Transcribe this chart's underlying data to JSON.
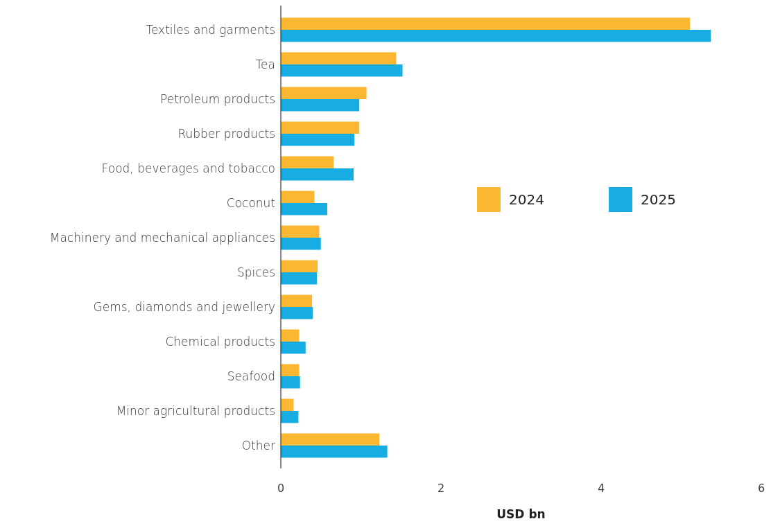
{
  "chart_data": {
    "type": "bar",
    "orientation": "horizontal",
    "xlabel": "USD bn",
    "categories": [
      "Textiles and garments",
      "Tea",
      "Petroleum products",
      "Rubber products",
      "Food, beverages and tobacco",
      "Coconut",
      "Machinery and mechanical appliances",
      "Spices",
      "Gems, diamonds and jewellery",
      "Chemical products",
      "Seafood",
      "Minor agricultural products",
      "Other"
    ],
    "series": [
      {
        "name": "2024",
        "color": "#fbb731",
        "values": [
          5.11,
          1.44,
          1.07,
          0.98,
          0.66,
          0.42,
          0.48,
          0.46,
          0.39,
          0.23,
          0.23,
          0.16,
          1.23
        ]
      },
      {
        "name": "2025",
        "color": "#17ace2",
        "values": [
          5.37,
          1.52,
          0.98,
          0.92,
          0.91,
          0.58,
          0.5,
          0.45,
          0.4,
          0.31,
          0.24,
          0.22,
          1.33
        ]
      }
    ],
    "xlim": [
      0,
      6
    ],
    "xticks": [
      0,
      2,
      4,
      6
    ],
    "grid": false,
    "legend": "right"
  }
}
